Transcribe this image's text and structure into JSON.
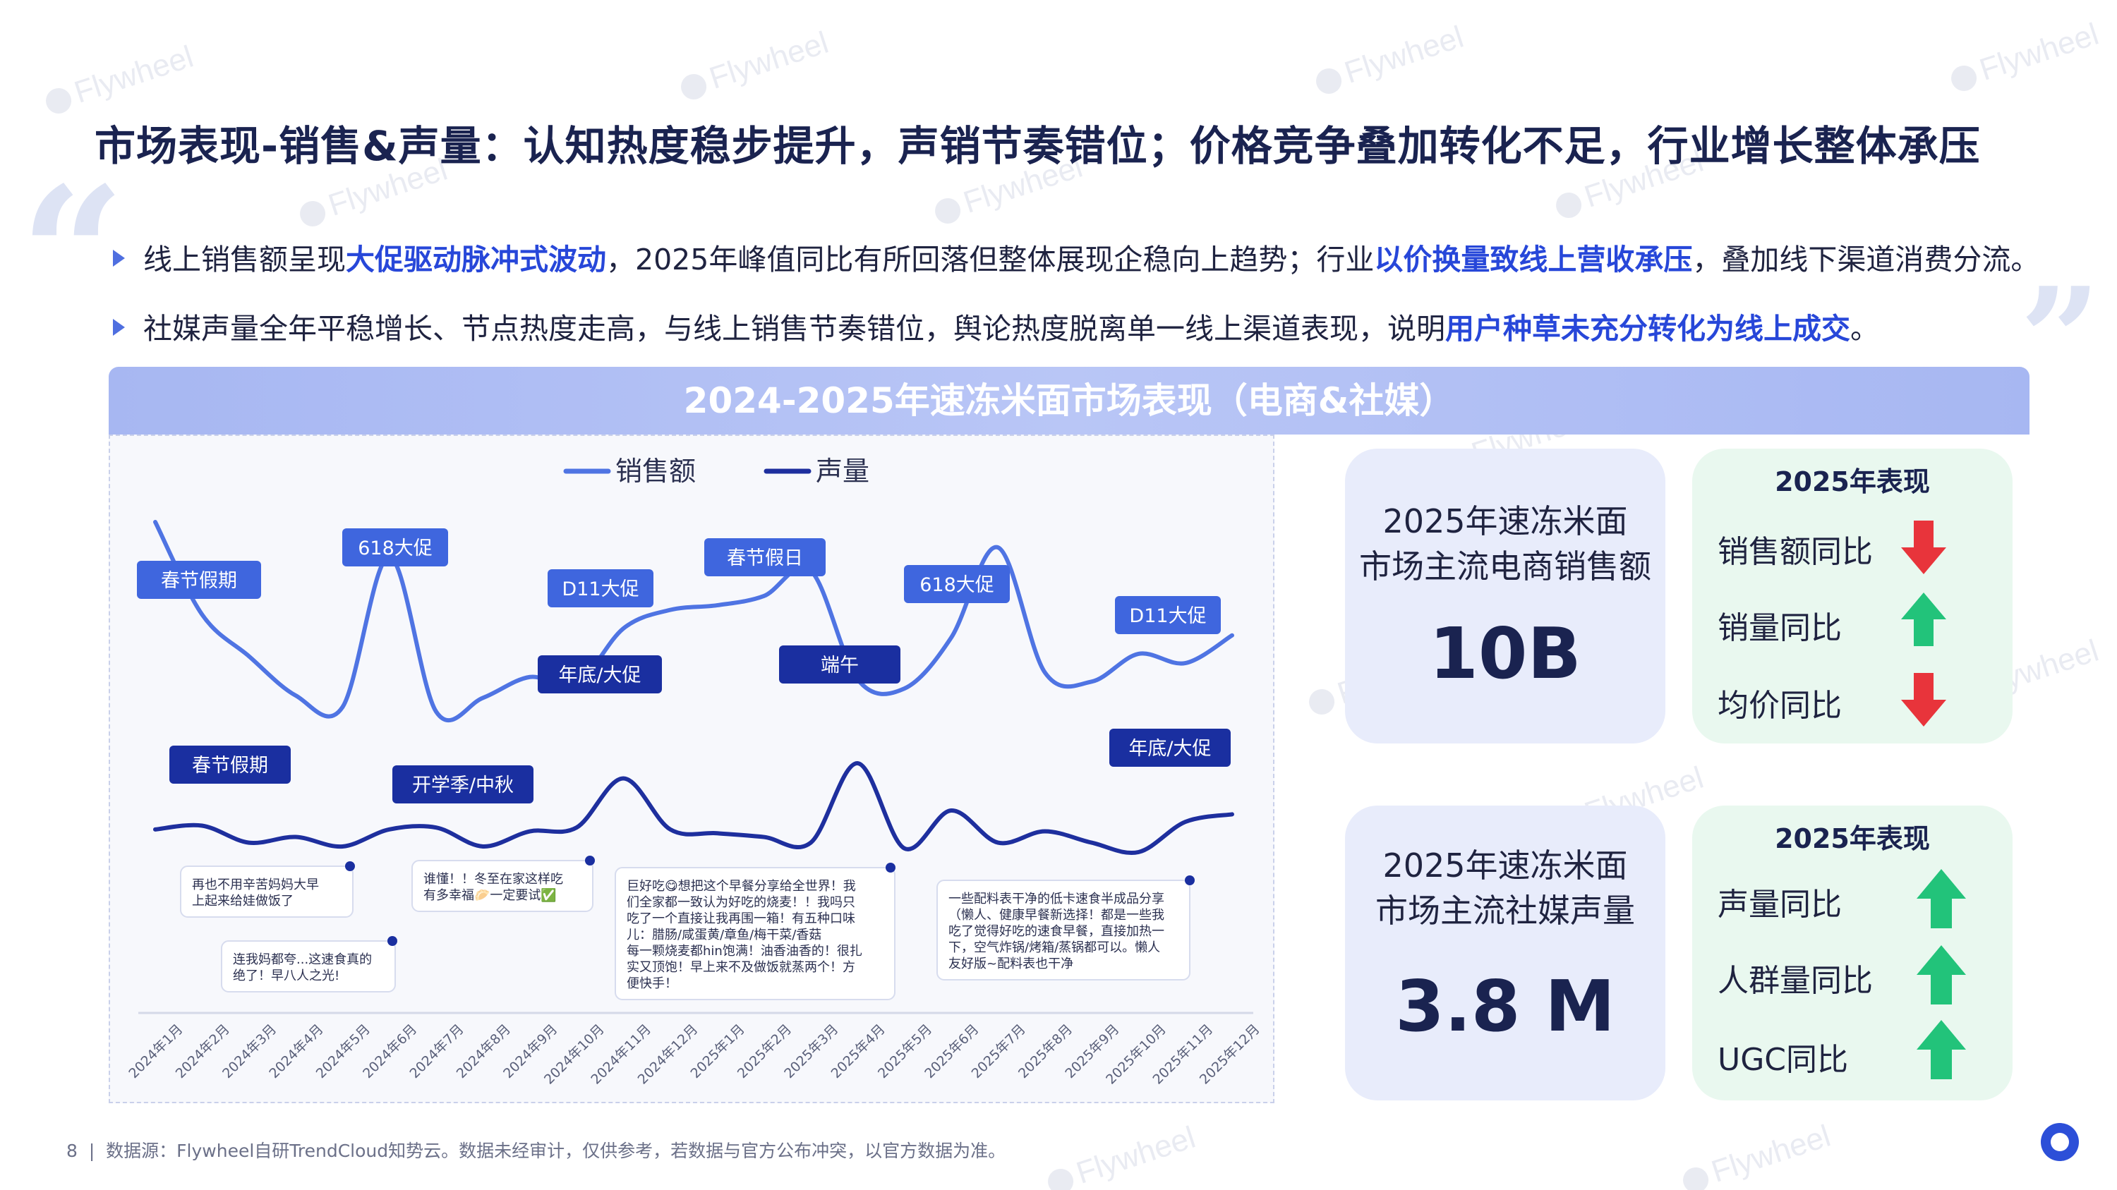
{
  "watermark": "Flywheel",
  "title": "市场表现-销售&声量：认知热度稳步提升，声销节奏错位；价格竞争叠加转化不足，行业增长整体承压",
  "bullets": [
    {
      "t1": "线上销售额呈现",
      "h1": "大促驱动脉冲式波动",
      "t2": "，2025年峰值同比有所回落但整体展现企稳向上趋势；行业",
      "h2": "以价换量致线上营收承压",
      "t3": "，叠加线下渠道消费分流。"
    },
    {
      "t1": "社媒声量全年平稳增长、节点热度走高，与线上销售节奏错位，舆论热度脱离单一线上渠道表现，说明",
      "h1": "用户种草未充分转化为线上成交",
      "t2": "。"
    }
  ],
  "banner": "2024-2025年速冻米面市场表现（电商&社媒）",
  "chart_data": {
    "type": "line",
    "title": "",
    "x": [
      "2024年1月",
      "2024年2月",
      "2024年3月",
      "2024年4月",
      "2024年5月",
      "2024年6月",
      "2024年7月",
      "2024年8月",
      "2024年9月",
      "2024年10月",
      "2024年11月",
      "2024年12月",
      "2025年1月",
      "2025年2月",
      "2025年3月",
      "2025年4月",
      "2025年5月",
      "2025年6月",
      "2025年7月",
      "2025年8月",
      "2025年9月",
      "2025年10月",
      "2025年11月",
      "2025年12月"
    ],
    "series": [
      {
        "name": "销售额",
        "color": "#4f74e3",
        "values": [
          100,
          60,
          42,
          25,
          20,
          85,
          18,
          24,
          33,
          30,
          54,
          62,
          64,
          68,
          79,
          32,
          28,
          50,
          89,
          35,
          31,
          43,
          39,
          51
        ]
      },
      {
        "name": "声量",
        "color": "#1e2f9e",
        "values": [
          12,
          14,
          5,
          8,
          3,
          12,
          13,
          3,
          11,
          13,
          39,
          12,
          10,
          8,
          5,
          47,
          2,
          22,
          5,
          11,
          5,
          0,
          16,
          20
        ]
      }
    ],
    "legend_position": "top-center",
    "grid": false
  },
  "chart_labels": {
    "sales": [
      "春节假期",
      "618大促",
      "D11大促",
      "春节假日",
      "618大促",
      "D11大促"
    ],
    "volume": [
      "春节假期",
      "开学季/中秋",
      "年底/大促",
      "端午",
      "年底/大促"
    ]
  },
  "comments": [
    "再也不用辛苦妈妈大早\n上起来给娃做饭了",
    "连我妈都夸...这速食真的\n绝了！早八人之光!",
    "谁懂！！冬至在家这样吃\n有多幸福🥟一定要试✅",
    "巨好吃😋想把这个早餐分享给全世界！我\n们全家都一致认为好吃的烧麦！！我吗只\n吃了一个直接让我再围一箱！有五种口味\n儿：腊肠/咸蛋黄/章鱼/梅干菜/香菇\n每一颗烧麦都hin饱满！油香油香的！很扎\n实又顶饱！早上来不及做饭就蒸两个！方\n便快手！",
    "一些配料表干净的低卡速食半成品分享\n（懒人、健康早餐新选择！都是一些我\n吃了觉得好吃的速食早餐，直接加热一\n下，空气炸锅/烤箱/蒸锅都可以。懒人\n友好版~配料表也干净"
  ],
  "card_sales": {
    "line1": "2025年速冻米面",
    "line2": "市场主流电商销售额",
    "value": "10B"
  },
  "perf_sales": {
    "title": "2025年表现",
    "items": [
      {
        "label": "销售额同比",
        "trend": "down"
      },
      {
        "label": "销量同比",
        "trend": "up"
      },
      {
        "label": "均价同比",
        "trend": "down"
      }
    ]
  },
  "card_social": {
    "line1": "2025年速冻米面",
    "line2": "市场主流社媒声量",
    "value": "3.8 M"
  },
  "perf_social": {
    "title": "2025年表现",
    "items": [
      {
        "label": "声量同比",
        "trend": "up"
      },
      {
        "label": "人群量同比",
        "trend": "up"
      },
      {
        "label": "UGC同比",
        "trend": "up"
      }
    ]
  },
  "colors": {
    "up": "#22c37a",
    "down": "#e8343b",
    "accent": "#2747d9"
  },
  "footer": {
    "page": "8",
    "sep": "|",
    "source": "数据源：Flywheel自研TrendCloud知势云。数据未经审计，仅供参考，若数据与官方公布冲突，以官方数据为准。"
  }
}
